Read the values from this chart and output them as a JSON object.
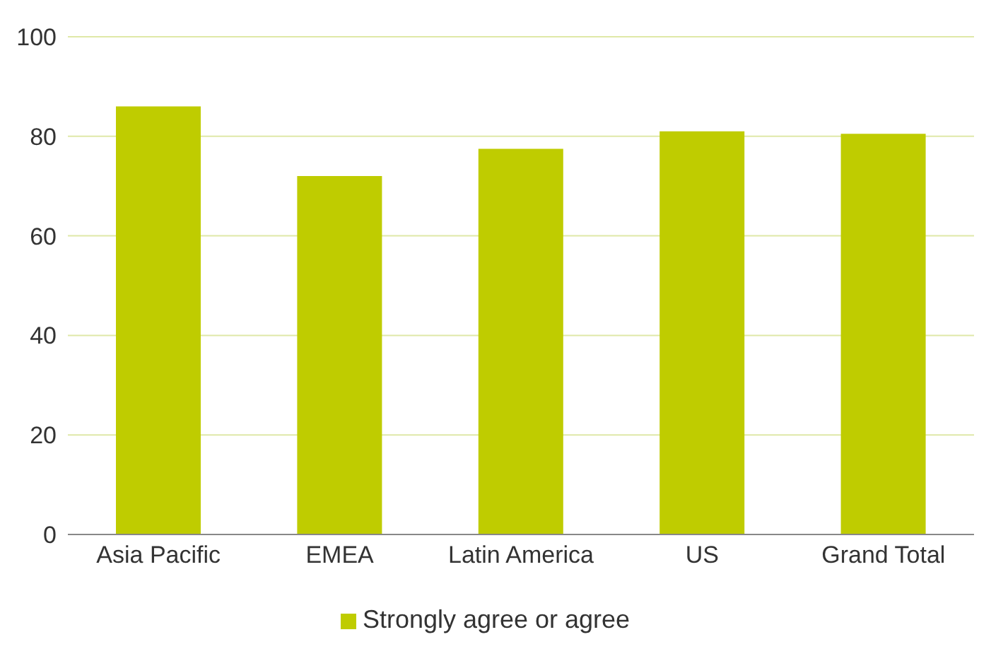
{
  "chart_data": {
    "type": "bar",
    "categories": [
      "Asia Pacific",
      "EMEA",
      "Latin America",
      "US",
      "Grand Total"
    ],
    "series": [
      {
        "name": "Strongly agree or agree",
        "color": "#bfcc00",
        "values": [
          86,
          72,
          77.5,
          81,
          80.5
        ]
      }
    ],
    "ylim": [
      0,
      100
    ],
    "yticks": [
      0,
      20,
      40,
      60,
      80,
      100
    ],
    "grid": "y",
    "legend": "bottom"
  }
}
